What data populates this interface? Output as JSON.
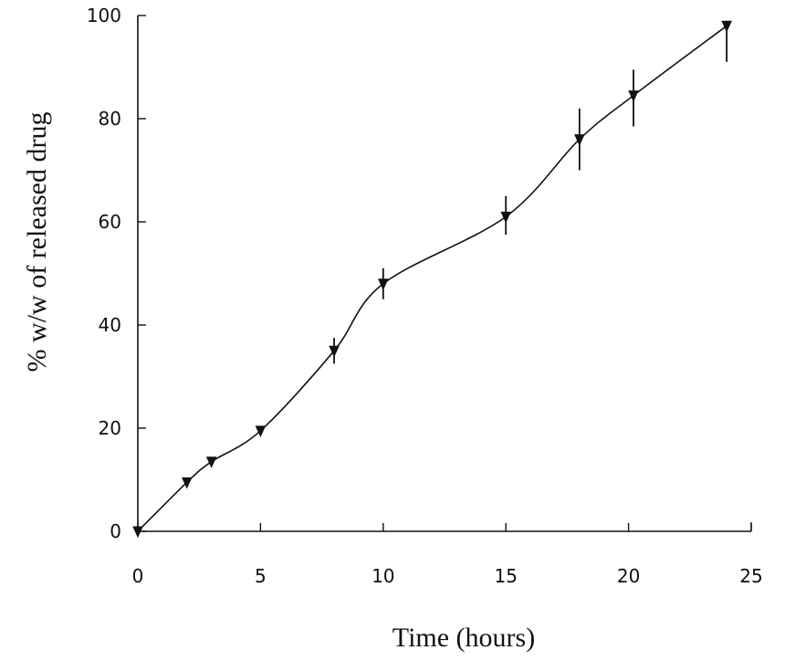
{
  "chart_data": {
    "type": "line",
    "title": "",
    "xlabel": "Time (hours)",
    "ylabel": "% w/w of released drug",
    "xlim": [
      0,
      25
    ],
    "ylim": [
      0,
      100
    ],
    "x_ticks": [
      0,
      5,
      10,
      15,
      20,
      25
    ],
    "y_ticks": [
      0,
      20,
      40,
      60,
      80,
      100
    ],
    "grid": false,
    "series": [
      {
        "name": "released drug",
        "marker": "down-triangle",
        "x": [
          0,
          2,
          3,
          5,
          8,
          10,
          15,
          18,
          20.2,
          24
        ],
        "y": [
          0,
          9.5,
          13.5,
          19.5,
          35,
          48,
          61,
          76,
          84.5,
          98
        ],
        "error_low": [
          0,
          0,
          0,
          0,
          2.5,
          3,
          3.5,
          6,
          6,
          7
        ],
        "error_high": [
          0,
          0,
          0,
          0,
          2.5,
          3,
          4,
          6,
          5,
          0
        ]
      }
    ]
  }
}
